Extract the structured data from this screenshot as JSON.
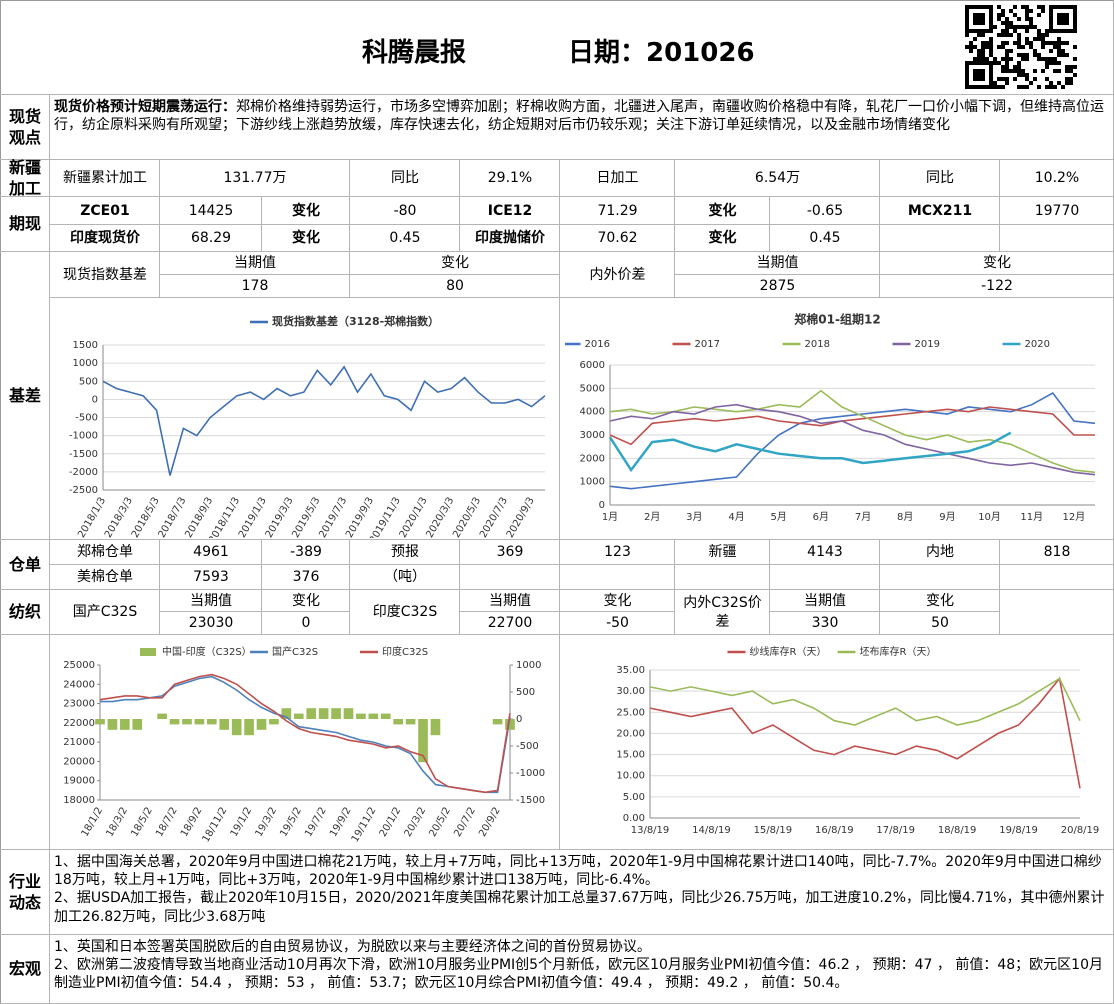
{
  "header": {
    "title": "科腾晨报",
    "date": "日期：201026"
  },
  "viewpoint": {
    "label": "现货观点",
    "heading": "现货价格预计短期震荡运行：",
    "text": "郑棉价格维持弱势运行，市场多空博弈加剧；籽棉收购方面，北疆进入尾声，南疆收购价格稳中有降，轧花厂一口价小幅下调，但维持高位运行，纺企原料采购有所观望；下游纱线上涨趋势放缓，库存快速去化，纺企短期对后市仍较乐观；关注下游订单延续情况，以及金融市场情绪变化"
  },
  "xinjiang": {
    "label": "新疆加工",
    "cells": [
      "新疆累计加工",
      "131.77万",
      "同比",
      "29.1%",
      "日加工",
      "6.54万",
      "同比",
      "10.2%"
    ]
  },
  "futures": {
    "label": "期现",
    "rows": [
      [
        "ZCE01",
        "14425",
        "变化",
        "-80",
        "ICE12",
        "71.29",
        "变化",
        "-0.65",
        "MCX211",
        "19770"
      ],
      [
        "印度现货价",
        "68.29",
        "变化",
        "0.45",
        "印度抛储价",
        "70.62",
        "变化",
        "0.45"
      ]
    ]
  },
  "basis": {
    "label": "基差",
    "name1": "现货指数基差",
    "cur1": "当期值",
    "val1": "178",
    "chg1": "变化",
    "chgval1": "80",
    "name2": "内外价差",
    "cur2": "当期值",
    "val2": "2875",
    "chg2": "变化",
    "chgval2": "-122"
  },
  "warehouse": {
    "label": "仓单",
    "rows": [
      [
        "郑棉仓单",
        "4961",
        "-389",
        "预报",
        "369",
        "123",
        "新疆",
        "4143",
        "内地",
        "818"
      ],
      [
        "美棉仓单",
        "7593",
        "376",
        "（吨）"
      ]
    ]
  },
  "textile": {
    "label": "纺织",
    "name1": "国产C32S",
    "cur1": "当期值",
    "val1": "23030",
    "chg1": "变化",
    "chgval1": "0",
    "name2": "印度C32S",
    "cur2": "当期值",
    "val2": "22700",
    "chg2": "变化",
    "chgval2": "-50",
    "name3": "内外C32S价差",
    "cur3": "当期值",
    "val3": "330",
    "chg3": "变化",
    "chgval3": "50"
  },
  "industry": {
    "label": "行业动态",
    "items": [
      "1、据中国海关总署，2020年9月中国进口棉花21万吨，较上月+7万吨，同比+13万吨，2020年1-9月中国棉花累计进口140吨，同比-7.7%。2020年9月中国进口棉纱18万吨，较上月+1万吨，同比+3万吨，2020年1-9月中国棉纱累计进口138万吨，同比-6.4%。",
      "2、据USDA加工报告，截止2020年10月15日，2020/2021年度美国棉花累计加工总量37.67万吨，同比少26.75万吨，加工进度10.2%，同比慢4.71%，其中德州累计加工26.82万吨，同比少3.68万吨"
    ]
  },
  "macro": {
    "label": "宏观",
    "items": [
      "1、英国和日本签署英国脱欧后的自由贸易协议，为脱欧以来与主要经济体之间的首份贸易协议。",
      "2、欧洲第二波疫情导致当地商业活动10月再次下滑，欧洲10月服务业PMI创5个月新低，欧元区10月服务业PMI初值今值：46.2 ， 预期：47 ， 前值：48；欧元区10月制造业PMI初值今值：54.4 ， 预期：53 ， 前值：53.7；欧元区10月综合PMI初值今值：49.4 ， 预期：49.2 ， 前值：50.4。"
    ]
  },
  "chart_data": [
    {
      "type": "line",
      "grid": true,
      "ylim": [
        -2500,
        1500
      ],
      "yticks": [
        -2500,
        -2000,
        -1500,
        -1000,
        -500,
        0,
        500,
        1000,
        1500
      ],
      "categories": [
        "2018/1/3",
        null,
        "2018/3/3",
        null,
        "2018/5/3",
        null,
        "2018/7/3",
        null,
        "2018/9/3",
        null,
        "2018/11/3",
        null,
        "2019/1/3",
        null,
        "2019/3/3",
        null,
        "2019/5/3",
        null,
        "2019/7/3",
        null,
        "2019/9/3",
        null,
        "2019/11/3",
        null,
        "2020/1/3",
        null,
        "2020/3/3",
        null,
        "2020/5/3",
        null,
        "2020/7/3",
        null,
        "2020/9/3",
        null
      ],
      "series": [
        {
          "name": "现货指数基差（3128-郑棉指数）",
          "color": "#3f6fb4",
          "values": [
            500,
            300,
            200,
            100,
            -300,
            -2100,
            -800,
            -1000,
            -500,
            -200,
            100,
            200,
            0,
            300,
            100,
            200,
            800,
            400,
            900,
            200,
            700,
            100,
            0,
            -300,
            500,
            200,
            300,
            600,
            200,
            -100,
            -100,
            0,
            -200,
            100
          ]
        }
      ]
    },
    {
      "type": "line",
      "title": "郑棉01-组期12",
      "grid": true,
      "ylim": [
        0,
        6000
      ],
      "yticks": [
        0,
        1000,
        2000,
        3000,
        4000,
        5000,
        6000
      ],
      "categories": [
        "1月",
        null,
        "2月",
        null,
        "3月",
        null,
        "4月",
        null,
        "5月",
        null,
        "6月",
        null,
        "7月",
        null,
        "8月",
        null,
        "9月",
        null,
        "10月",
        null,
        "11月",
        null,
        "12月",
        null
      ],
      "series": [
        {
          "name": "2016",
          "color": "#4472c4",
          "values": [
            800,
            700,
            800,
            900,
            1000,
            1100,
            1200,
            2200,
            3000,
            3500,
            3700,
            3800,
            3900,
            4000,
            4100,
            4000,
            3900,
            4200,
            4100,
            4000,
            4300,
            4800,
            3600,
            3500
          ]
        },
        {
          "name": "2017",
          "color": "#c0504d",
          "values": [
            3000,
            2600,
            3500,
            3600,
            3700,
            3600,
            3700,
            3800,
            3600,
            3500,
            3400,
            3600,
            3700,
            3800,
            3900,
            4000,
            4100,
            4000,
            4200,
            4100,
            4000,
            3900,
            3000,
            3000
          ]
        },
        {
          "name": "2018",
          "color": "#9bbb59",
          "values": [
            4000,
            4100,
            3900,
            4000,
            4200,
            4100,
            4000,
            4100,
            4300,
            4200,
            4900,
            4200,
            3800,
            3400,
            3000,
            2800,
            3000,
            2700,
            2800,
            2600,
            2200,
            1800,
            1500,
            1400
          ]
        },
        {
          "name": "2019",
          "color": "#8064a2",
          "values": [
            3600,
            3800,
            3700,
            4000,
            3900,
            4200,
            4300,
            4100,
            4000,
            3800,
            3500,
            3600,
            3200,
            3000,
            2600,
            2400,
            2200,
            2000,
            1800,
            1700,
            1800,
            1600,
            1400,
            1300
          ]
        },
        {
          "name": "2020",
          "color": "#31a6c4",
          "values": [
            2900,
            1500,
            2700,
            2800,
            2500,
            2300,
            2600,
            2400,
            2200,
            2100,
            2000,
            2000,
            1800,
            1900,
            2000,
            2100,
            2200,
            2300,
            2600,
            3100,
            null,
            null,
            null,
            null
          ]
        }
      ]
    },
    {
      "type": "combo",
      "grid": false,
      "ylim": [
        18000,
        25000
      ],
      "yticks": [
        18000,
        19000,
        20000,
        21000,
        22000,
        23000,
        24000,
        25000
      ],
      "y2lim": [
        -1500,
        1000
      ],
      "y2ticks": [
        -1500,
        -1000,
        -500,
        0,
        500,
        1000
      ],
      "categories": [
        "18/1/2",
        null,
        "18/3/2",
        null,
        "18/5/2",
        null,
        "18/7/2",
        null,
        "18/9/2",
        null,
        "18/11/2",
        null,
        "19/1/2",
        null,
        "19/3/2",
        null,
        "19/5/2",
        null,
        "19/7/2",
        null,
        "19/9/2",
        null,
        "19/11/2",
        null,
        "20/1/2",
        null,
        "20/3/2",
        null,
        "20/5/2",
        null,
        "20/7/2",
        null,
        "20/9/2",
        null
      ],
      "series": [
        {
          "name": "中国-印度（C32S）",
          "type": "bar",
          "axis": "y2",
          "color": "#9bbb59",
          "values": [
            -100,
            -200,
            -200,
            -200,
            0,
            100,
            -100,
            -100,
            -100,
            -100,
            -200,
            -300,
            -300,
            -200,
            -100,
            200,
            100,
            200,
            200,
            200,
            200,
            100,
            100,
            100,
            -100,
            -100,
            -800,
            -300,
            0,
            0,
            0,
            0,
            -100,
            -200
          ]
        },
        {
          "name": "国产C32S",
          "type": "line",
          "color": "#4f81bd",
          "values": [
            23100,
            23100,
            23200,
            23200,
            23300,
            23400,
            23900,
            24100,
            24300,
            24400,
            24100,
            23700,
            23200,
            22800,
            22500,
            22300,
            21800,
            21700,
            21600,
            21500,
            21300,
            21100,
            21000,
            20800,
            20700,
            20400,
            19500,
            18800,
            18700,
            18600,
            18500,
            18400,
            18400,
            22300
          ]
        },
        {
          "name": "印度C32S",
          "type": "line",
          "color": "#c0504d",
          "values": [
            23200,
            23300,
            23400,
            23400,
            23300,
            23300,
            24000,
            24200,
            24400,
            24500,
            24300,
            24000,
            23500,
            23000,
            22600,
            22100,
            21700,
            21500,
            21400,
            21300,
            21100,
            21000,
            20900,
            20700,
            20800,
            20500,
            20300,
            19100,
            18700,
            18600,
            18500,
            18400,
            18500,
            22500
          ]
        }
      ]
    },
    {
      "type": "line",
      "grid": true,
      "ylim": [
        0,
        35
      ],
      "yticks": [
        {
          "value": 0,
          "label": "0.00"
        },
        {
          "value": 5,
          "label": "5.00"
        },
        {
          "value": 10,
          "label": "10.00"
        },
        {
          "value": 15,
          "label": "15.00"
        },
        {
          "value": 20,
          "label": "20.00"
        },
        {
          "value": 25,
          "label": "25.00"
        },
        {
          "value": 30,
          "label": "30.00"
        },
        {
          "value": 35,
          "label": "35.00"
        }
      ],
      "categories": [
        "13/8/19",
        null,
        null,
        "14/8/19",
        null,
        null,
        "15/8/19",
        null,
        null,
        "16/8/19",
        null,
        null,
        "17/8/19",
        null,
        null,
        "18/8/19",
        null,
        null,
        "19/8/19",
        null,
        null,
        "20/8/19"
      ],
      "series": [
        {
          "name": "纱线库存R（天）",
          "color": "#c0504d",
          "values": [
            26,
            25,
            24,
            25,
            26,
            20,
            22,
            19,
            16,
            15,
            17,
            16,
            15,
            17,
            16,
            14,
            17,
            20,
            22,
            27,
            33,
            7
          ]
        },
        {
          "name": "坯布库存R（天）",
          "color": "#9bbb59",
          "values": [
            31,
            30,
            31,
            30,
            29,
            30,
            27,
            28,
            26,
            23,
            22,
            24,
            26,
            23,
            24,
            22,
            23,
            25,
            27,
            30,
            33,
            23
          ]
        }
      ]
    }
  ]
}
